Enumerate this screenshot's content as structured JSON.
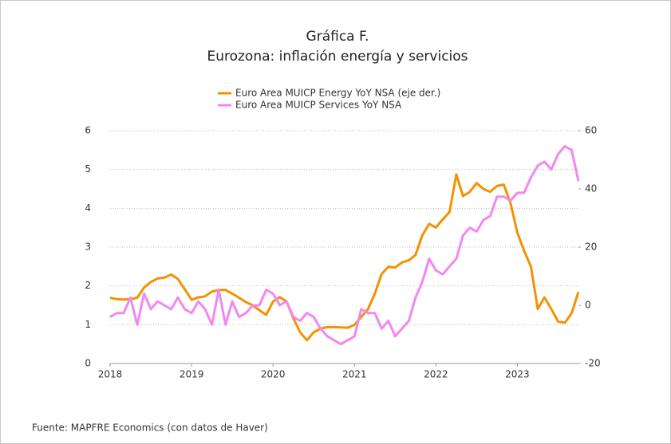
{
  "chart_data": {
    "type": "line",
    "title": "Gráfica F.",
    "subtitle": "Eurozona: inflación energía y servicios",
    "source": "Fuente: MAPFRE Economics (con datos de Haver)",
    "x": [
      2018,
      2018.083,
      2018.167,
      2018.25,
      2018.333,
      2018.417,
      2018.5,
      2018.583,
      2018.667,
      2018.75,
      2018.833,
      2018.917,
      2019,
      2019.083,
      2019.167,
      2019.25,
      2019.333,
      2019.417,
      2019.5,
      2019.583,
      2019.667,
      2019.75,
      2019.833,
      2019.917,
      2020,
      2020.083,
      2020.167,
      2020.25,
      2020.333,
      2020.417,
      2020.5,
      2020.583,
      2020.667,
      2020.75,
      2020.833,
      2020.917,
      2021,
      2021.083,
      2021.167,
      2021.25,
      2021.333,
      2021.417,
      2021.5,
      2021.583,
      2021.667,
      2021.75,
      2021.833,
      2021.917,
      2022,
      2022.083,
      2022.167,
      2022.25,
      2022.333,
      2022.417,
      2022.5,
      2022.583,
      2022.667,
      2022.75,
      2022.833,
      2022.917,
      2023,
      2023.083,
      2023.167,
      2023.25,
      2023.333,
      2023.417,
      2023.5,
      2023.583,
      2023.667,
      2023.75
    ],
    "series": [
      {
        "name": "Euro Area MUICP Energy YoY NSA (eje der.)",
        "color": "#f39200",
        "axis": "y2",
        "values": [
          2.6,
          2.1,
          2.0,
          2.1,
          2.6,
          6.1,
          8.0,
          9.2,
          9.5,
          10.6,
          9.0,
          5.5,
          1.9,
          2.7,
          3.1,
          4.7,
          5.3,
          5.3,
          4.0,
          2.6,
          1.1,
          0.0,
          -1.7,
          -3.3,
          1.3,
          2.8,
          1.3,
          -4.5,
          -9.3,
          -12.0,
          -9.3,
          -8.0,
          -7.5,
          -7.5,
          -7.6,
          -7.7,
          -6.7,
          -4.0,
          -1.3,
          4.0,
          10.7,
          13.3,
          13.0,
          14.7,
          15.5,
          17.3,
          24.0,
          28.0,
          26.7,
          29.5,
          32.0,
          45.0,
          37.5,
          39.0,
          42.0,
          40.0,
          39.0,
          41.0,
          41.5,
          35.0,
          25.0,
          18.7,
          13.3,
          -1.3,
          2.7,
          -1.3,
          -5.6,
          -6.0,
          -2.7,
          4.6
        ]
      },
      {
        "name": "Euro Area MUICP Services YoY NSA",
        "color": "#f287f2",
        "values": [
          1.2,
          1.3,
          1.3,
          1.7,
          1.0,
          1.8,
          1.4,
          1.6,
          1.5,
          1.4,
          1.7,
          1.4,
          1.3,
          1.6,
          1.4,
          1.0,
          1.9,
          1.0,
          1.6,
          1.2,
          1.3,
          1.5,
          1.5,
          1.9,
          1.8,
          1.5,
          1.6,
          1.2,
          1.1,
          1.3,
          1.2,
          0.9,
          0.7,
          0.6,
          0.5,
          0.6,
          0.7,
          1.4,
          1.3,
          1.3,
          0.9,
          1.1,
          0.7,
          0.9,
          1.1,
          1.7,
          2.1,
          2.7,
          2.4,
          2.3,
          2.5,
          2.7,
          3.3,
          3.5,
          3.4,
          3.7,
          3.8,
          4.3,
          4.3,
          4.2,
          4.4,
          4.4,
          4.8,
          5.1,
          5.2,
          5.0,
          5.4,
          5.6,
          5.5,
          4.7
        ]
      }
    ],
    "xlim": [
      2018,
      2023.75
    ],
    "xticks": [
      2018,
      2019,
      2020,
      2021,
      2022,
      2023
    ],
    "ylim": [
      0,
      6
    ],
    "yticks": [
      0,
      1,
      2,
      3,
      4,
      5,
      6
    ],
    "y2lim": [
      -20,
      60
    ],
    "y2ticks": [
      -20,
      0,
      20,
      40,
      60
    ],
    "grid": true,
    "legend": "top"
  }
}
